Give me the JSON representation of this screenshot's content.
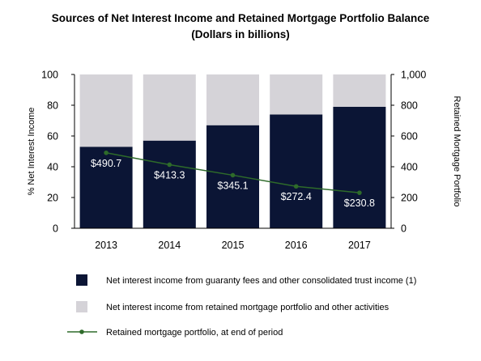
{
  "chart_data": {
    "type": "bar",
    "title": "Sources of Net Interest Income and Retained Mortgage Portfolio Balance",
    "subtitle": "(Dollars in billions)",
    "categories": [
      "2013",
      "2014",
      "2015",
      "2016",
      "2017"
    ],
    "series": [
      {
        "name": "Net interest income from guaranty fees and other consolidated trust income (1)",
        "type": "stacked-bar",
        "axis": "left",
        "values": [
          53,
          57,
          67,
          74,
          79
        ],
        "color": "#0b1535"
      },
      {
        "name": "Net interest income from retained mortgage portfolio and other activities",
        "type": "stacked-bar",
        "axis": "left",
        "values": [
          47,
          43,
          33,
          26,
          21
        ],
        "color": "#d5d3d8"
      },
      {
        "name": "Retained mortgage portfolio, at end of period",
        "type": "line",
        "axis": "right",
        "values": [
          490.7,
          413.3,
          345.1,
          272.4,
          230.8
        ],
        "labels": [
          "$490.7",
          "$413.3",
          "$345.1",
          "$272.4",
          "$230.8"
        ],
        "color": "#2e6b2a"
      }
    ],
    "ylabel": "% Net Interest Income",
    "y2label": "Retained Mortgage Portfolio",
    "ylim": [
      0,
      100
    ],
    "y2lim": [
      0,
      1000
    ],
    "yticks": [
      "0",
      "20",
      "40",
      "60",
      "80",
      "100"
    ],
    "y2ticks": [
      "0",
      "200",
      "400",
      "600",
      "800",
      "1,000"
    ],
    "grid": false,
    "legend_position": "bottom"
  }
}
